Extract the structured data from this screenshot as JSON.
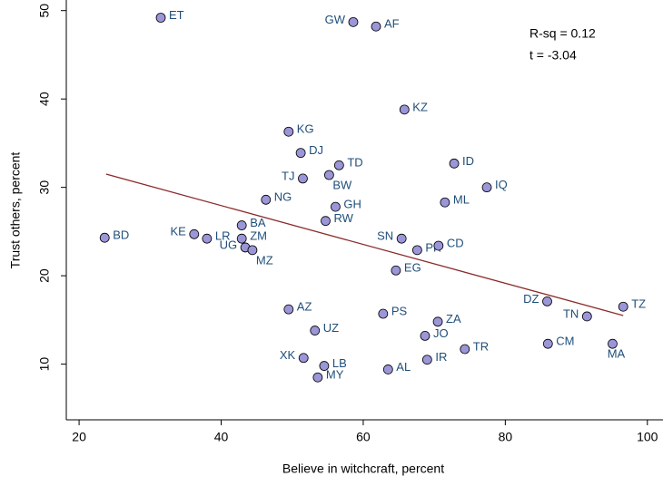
{
  "chart_data": {
    "type": "scatter",
    "xlabel": "Believe in witchcraft, percent",
    "ylabel": "Trust others, percent",
    "annotations": [
      "R-sq = 0.12",
      "t = -3.04"
    ],
    "labels": [
      "ET",
      "GW",
      "AF",
      "KZ",
      "KG",
      "DJ",
      "TD",
      "TJ",
      "BW",
      "ID",
      "IQ",
      "NG",
      "ML",
      "GH",
      "RW",
      "BD",
      "KE",
      "LR",
      "BA",
      "ZM",
      "UG",
      "MZ",
      "SN",
      "PK",
      "CD",
      "EG",
      "DZ",
      "TN",
      "TZ",
      "AZ",
      "PS",
      "ZA",
      "UZ",
      "JO",
      "CM",
      "MA",
      "TR",
      "XK",
      "IR",
      "LB",
      "AL",
      "MY"
    ],
    "x": [
      31.5,
      58.6,
      61.8,
      65.8,
      49.5,
      51.2,
      56.6,
      51.5,
      55.2,
      72.8,
      77.4,
      46.3,
      71.5,
      56.1,
      54.7,
      23.6,
      36.2,
      38.0,
      42.9,
      42.9,
      43.4,
      44.4,
      65.4,
      67.6,
      70.6,
      64.6,
      85.9,
      91.5,
      96.6,
      49.5,
      62.8,
      70.5,
      53.2,
      68.7,
      86.0,
      95.1,
      74.3,
      51.6,
      69.0,
      54.5,
      63.5,
      53.6
    ],
    "y": [
      49.2,
      48.7,
      48.2,
      38.8,
      36.3,
      33.9,
      32.5,
      31.0,
      31.4,
      32.7,
      30.0,
      28.6,
      28.3,
      27.8,
      26.2,
      24.3,
      24.7,
      24.2,
      25.7,
      24.2,
      23.2,
      22.9,
      24.2,
      22.9,
      23.4,
      20.6,
      17.1,
      15.4,
      16.5,
      16.2,
      15.7,
      14.8,
      13.8,
      13.2,
      12.3,
      12.3,
      11.7,
      10.7,
      10.5,
      9.8,
      9.4,
      8.5
    ],
    "color": "#9b96d8",
    "label_color": "#1f4e79",
    "fit_line": {
      "x": [
        23.8,
        96.6
      ],
      "y": [
        31.5,
        15.5
      ],
      "color": "#8b2a2a"
    },
    "xlim": [
      18.2,
      102.2
    ],
    "ylim": [
      3.7,
      51.2
    ],
    "xticks": [
      20,
      40,
      60,
      80,
      100
    ],
    "yticks": [
      10,
      20,
      30,
      40,
      50
    ]
  }
}
